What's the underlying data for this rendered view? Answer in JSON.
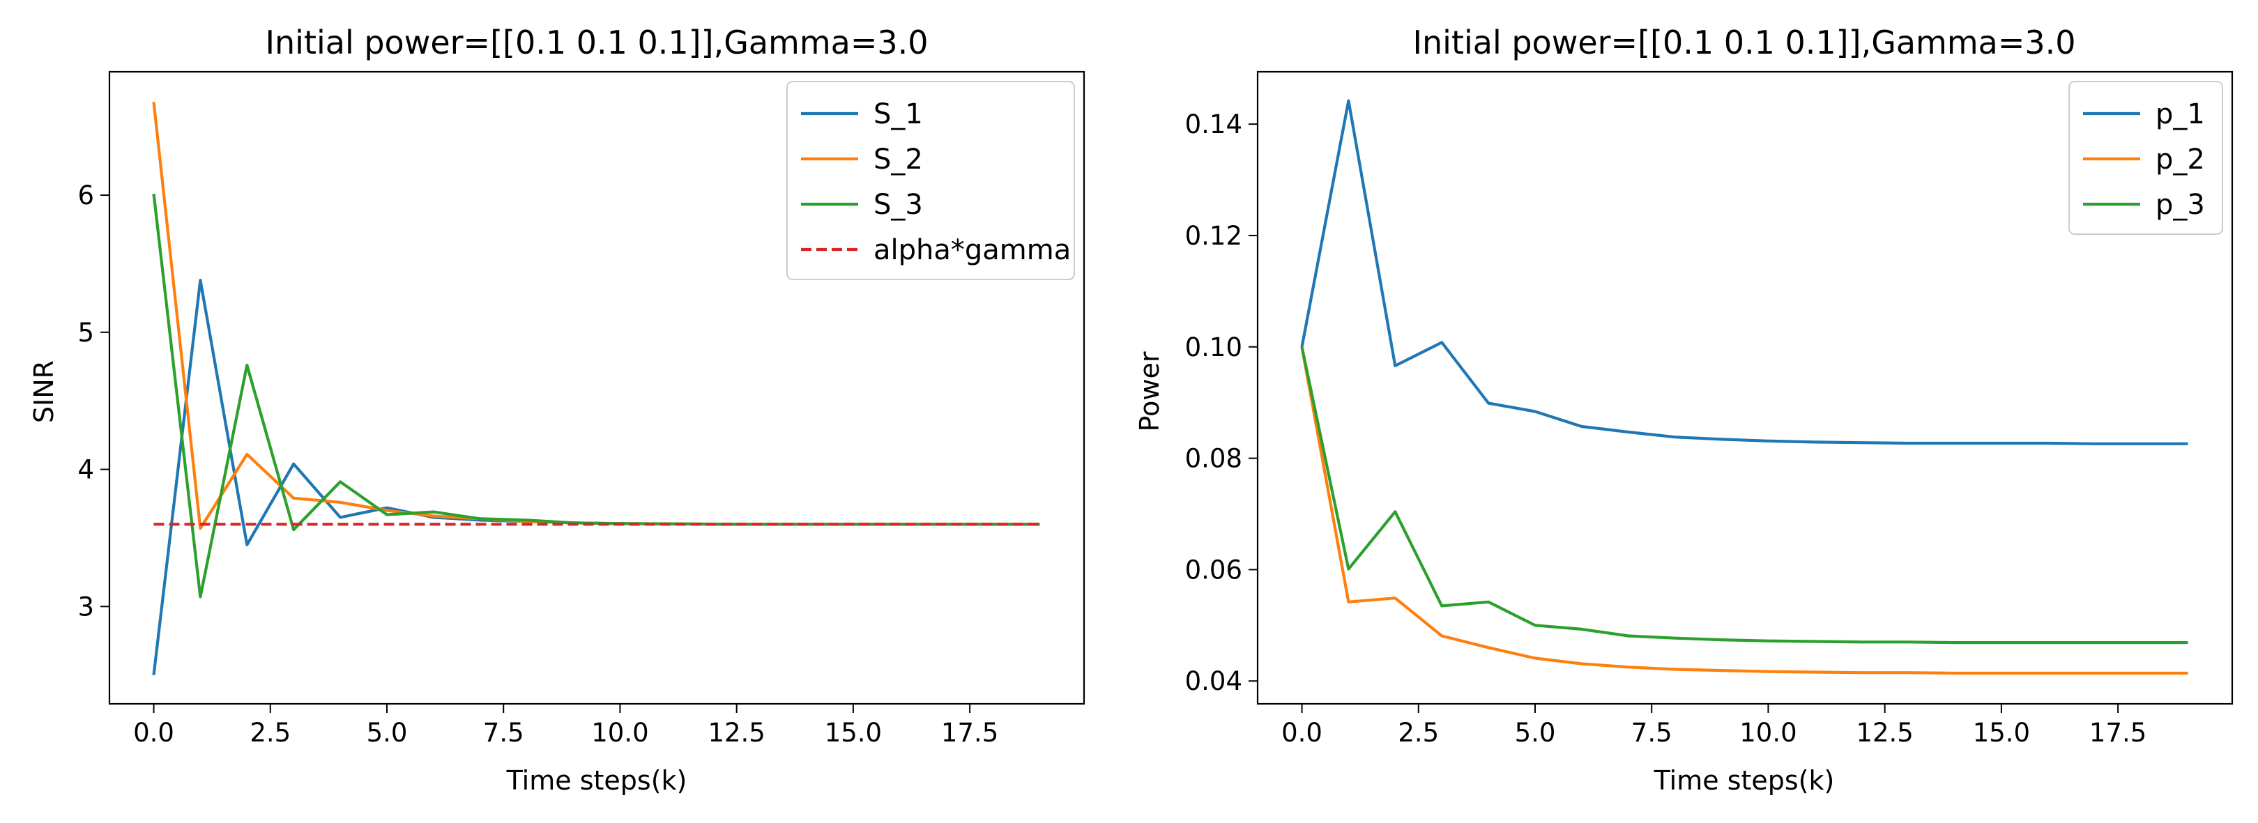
{
  "chart_data": [
    {
      "type": "line",
      "title": "Initial power=[[0.1 0.1 0.1]],Gamma=3.0",
      "xlabel": "Time steps(k)",
      "ylabel": "SINR",
      "xlim": [
        -0.95,
        19.95
      ],
      "ylim": [
        2.29,
        6.9
      ],
      "xticks": [
        0,
        2.5,
        5,
        7.5,
        10,
        12.5,
        15,
        17.5
      ],
      "xtick_labels": [
        "0.0",
        "2.5",
        "5.0",
        "7.5",
        "10.0",
        "12.5",
        "15.0",
        "17.5"
      ],
      "yticks": [
        3,
        4,
        5,
        6
      ],
      "ytick_labels": [
        "3",
        "4",
        "5",
        "6"
      ],
      "legend_position": "top-right",
      "grid": false,
      "x": [
        0,
        1,
        2,
        3,
        4,
        5,
        6,
        7,
        8,
        9,
        10,
        11,
        12,
        13,
        14,
        15,
        16,
        17,
        18,
        19
      ],
      "series": [
        {
          "name": "S_1",
          "color": "#1f77b4",
          "dashed": false,
          "values": [
            2.5,
            5.38,
            3.45,
            4.04,
            3.65,
            3.72,
            3.65,
            3.63,
            3.62,
            3.61,
            3.605,
            3.603,
            3.601,
            3.6,
            3.6,
            3.6,
            3.6,
            3.6,
            3.6,
            3.6
          ]
        },
        {
          "name": "S_2",
          "color": "#ff7f0e",
          "dashed": false,
          "values": [
            6.68,
            3.57,
            4.11,
            3.79,
            3.76,
            3.7,
            3.66,
            3.64,
            3.62,
            3.61,
            3.605,
            3.603,
            3.601,
            3.6,
            3.6,
            3.6,
            3.6,
            3.6,
            3.6,
            3.6
          ]
        },
        {
          "name": "S_3",
          "color": "#2ca02c",
          "dashed": false,
          "values": [
            6.01,
            3.07,
            4.76,
            3.56,
            3.91,
            3.67,
            3.69,
            3.64,
            3.63,
            3.61,
            3.605,
            3.603,
            3.601,
            3.6,
            3.6,
            3.6,
            3.6,
            3.6,
            3.6,
            3.6
          ]
        },
        {
          "name": "alpha*gamma",
          "color": "#d62728",
          "dashed": true,
          "values": [
            3.6,
            3.6,
            3.6,
            3.6,
            3.6,
            3.6,
            3.6,
            3.6,
            3.6,
            3.6,
            3.6,
            3.6,
            3.6,
            3.6,
            3.6,
            3.6,
            3.6,
            3.6,
            3.6,
            3.6
          ]
        }
      ]
    },
    {
      "type": "line",
      "title": "Initial power=[[0.1 0.1 0.1]],Gamma=3.0",
      "xlabel": "Time steps(k)",
      "ylabel": "Power",
      "xlim": [
        -0.95,
        19.95
      ],
      "ylim": [
        0.0359,
        0.1494
      ],
      "xticks": [
        0,
        2.5,
        5,
        7.5,
        10,
        12.5,
        15,
        17.5
      ],
      "xtick_labels": [
        "0.0",
        "2.5",
        "5.0",
        "7.5",
        "10.0",
        "12.5",
        "15.0",
        "17.5"
      ],
      "yticks": [
        0.04,
        0.06,
        0.08,
        0.1,
        0.12,
        0.14
      ],
      "ytick_labels": [
        "0.04",
        "0.06",
        "0.08",
        "0.10",
        "0.12",
        "0.14"
      ],
      "legend_position": "top-right",
      "grid": false,
      "x": [
        0,
        1,
        2,
        3,
        4,
        5,
        6,
        7,
        8,
        9,
        10,
        11,
        12,
        13,
        14,
        15,
        16,
        17,
        18,
        19
      ],
      "series": [
        {
          "name": "p_1",
          "color": "#1f77b4",
          "dashed": false,
          "values": [
            0.1,
            0.1442,
            0.0966,
            0.1008,
            0.0899,
            0.0884,
            0.0857,
            0.0847,
            0.0838,
            0.0834,
            0.0831,
            0.0829,
            0.0828,
            0.0827,
            0.0827,
            0.0827,
            0.0827,
            0.0826,
            0.0826,
            0.0826
          ]
        },
        {
          "name": "p_2",
          "color": "#ff7f0e",
          "dashed": false,
          "values": [
            0.1,
            0.0542,
            0.0549,
            0.0481,
            0.046,
            0.0441,
            0.0431,
            0.0425,
            0.0421,
            0.0419,
            0.0417,
            0.0416,
            0.0415,
            0.0415,
            0.0414,
            0.0414,
            0.0414,
            0.0414,
            0.0414,
            0.0414
          ]
        },
        {
          "name": "p_3",
          "color": "#2ca02c",
          "dashed": false,
          "values": [
            0.1,
            0.0601,
            0.0704,
            0.0535,
            0.0542,
            0.05,
            0.0493,
            0.0481,
            0.0477,
            0.0474,
            0.0472,
            0.0471,
            0.047,
            0.047,
            0.0469,
            0.0469,
            0.0469,
            0.0469,
            0.0469,
            0.0469
          ]
        }
      ]
    }
  ]
}
